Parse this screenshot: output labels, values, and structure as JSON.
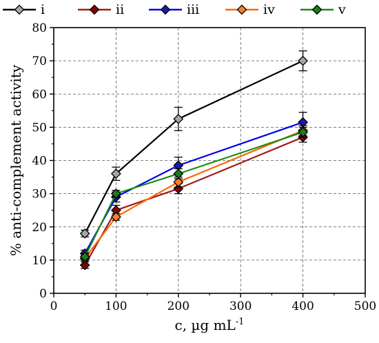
{
  "chart_data": {
    "type": "line",
    "xlabel": "c, µg mL",
    "xlabel_superscript": "-1",
    "ylabel": "% anti-complement activity",
    "xlim": [
      0,
      500
    ],
    "ylim": [
      0,
      80
    ],
    "x_ticks": [
      "0",
      "100",
      "200",
      "300",
      "400",
      "500"
    ],
    "y_ticks": [
      "0",
      "10",
      "20",
      "30",
      "40",
      "50",
      "60",
      "70",
      "80"
    ],
    "grid": true,
    "legend_position": "top",
    "x": [
      50,
      100,
      200,
      400
    ],
    "series": [
      {
        "name": "i",
        "color": "#000000",
        "marker_color": "#a6a6a6",
        "values": [
          18.0,
          36.0,
          52.5,
          70.0
        ],
        "errors": [
          1.0,
          2.0,
          3.5,
          3.0
        ]
      },
      {
        "name": "ii",
        "color": "#9e1c1c",
        "marker_color": "#8b0000",
        "values": [
          8.5,
          25.0,
          31.5,
          47.0
        ],
        "errors": [
          1.0,
          1.5,
          1.5,
          1.5
        ]
      },
      {
        "name": "iii",
        "color": "#0000ee",
        "marker_color": "#1a1aaa",
        "values": [
          12.0,
          29.0,
          38.5,
          51.5
        ],
        "errors": [
          1.0,
          1.5,
          2.5,
          3.0
        ]
      },
      {
        "name": "iv",
        "color": "#ff6600",
        "marker_color": "#ff7f27",
        "values": [
          10.5,
          23.0,
          33.5,
          49.0
        ],
        "errors": [
          1.0,
          1.0,
          1.5,
          1.5
        ]
      },
      {
        "name": "v",
        "color": "#1a8a1a",
        "marker_color": "#1f7a1f",
        "values": [
          11.0,
          30.0,
          36.0,
          48.5
        ],
        "errors": [
          1.0,
          1.0,
          1.5,
          1.5
        ]
      }
    ]
  }
}
